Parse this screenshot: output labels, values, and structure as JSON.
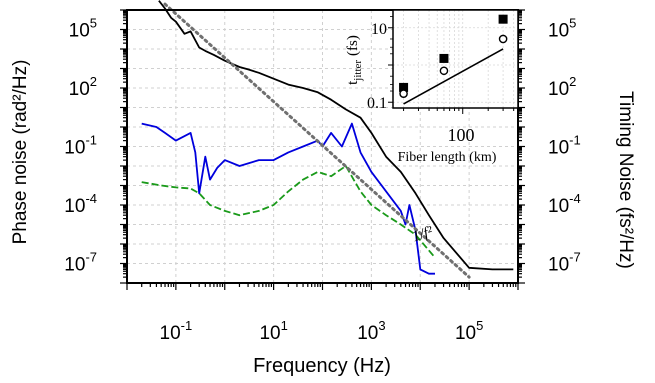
{
  "chart_data": {
    "type": "line",
    "xlabel": "Frequency (Hz)",
    "ylabel_left": "Phase noise (rad²/Hz)",
    "ylabel_right": "Timing Noise (fs²/Hz)",
    "x_scale": "log",
    "y_scale": "log",
    "xlim": [
      0.01,
      1000000
    ],
    "ylim": [
      1e-08,
      1000000
    ],
    "grid": true,
    "x_ticks": [
      {
        "value": 0.1,
        "base": "10",
        "exp": "-1"
      },
      {
        "value": 10,
        "base": "10",
        "exp": "1"
      },
      {
        "value": 1000,
        "base": "10",
        "exp": "3"
      },
      {
        "value": 100000,
        "base": "10",
        "exp": "5"
      }
    ],
    "y_ticks_left": [
      {
        "value": 100000,
        "base": "10",
        "exp": "5"
      },
      {
        "value": 100,
        "base": "10",
        "exp": "2"
      },
      {
        "value": 0.1,
        "base": "10",
        "exp": "-1"
      },
      {
        "value": 0.0001,
        "base": "10",
        "exp": "-4"
      },
      {
        "value": 1e-07,
        "base": "10",
        "exp": "-7"
      }
    ],
    "y_ticks_right": [
      {
        "value": 100000,
        "base": "10",
        "exp": "5"
      },
      {
        "value": 100,
        "base": "10",
        "exp": "2"
      },
      {
        "value": 0.1,
        "base": "10",
        "exp": "-1"
      },
      {
        "value": 0.0001,
        "base": "10",
        "exp": "-4"
      },
      {
        "value": 1e-07,
        "base": "10",
        "exp": "-7"
      }
    ],
    "annotation": "1/f²",
    "series": [
      {
        "color": "#000000",
        "style": "solid",
        "x": [
          0.045,
          0.06,
          0.08,
          0.1,
          0.15,
          0.2,
          0.3,
          0.4,
          0.6,
          1,
          2,
          3,
          5,
          10,
          20,
          40,
          80,
          150,
          300,
          600,
          1000,
          2000,
          4000,
          8000,
          15000,
          30000,
          100000,
          300000,
          800000
        ],
        "y": [
          3000000,
          1200000,
          400000,
          250000,
          60000,
          80000,
          12000,
          8000,
          5000,
          2500,
          1200,
          900,
          600,
          300,
          150,
          100,
          60,
          25,
          8,
          3,
          0.5,
          0.03,
          0.005,
          0.0004,
          3e-05,
          2e-06,
          6e-08,
          5e-08,
          5e-08
        ]
      },
      {
        "color": "#0000dd",
        "style": "solid",
        "x": [
          0.02,
          0.04,
          0.06,
          0.1,
          0.2,
          0.25,
          0.3,
          0.4,
          0.5,
          0.7,
          1,
          2,
          5,
          10,
          20,
          40,
          80,
          100,
          150,
          250,
          400,
          600,
          1000,
          2000,
          4000,
          5000,
          6000,
          8000,
          10000,
          15000,
          20000
        ],
        "y": [
          1.5,
          1.0,
          0.5,
          0.2,
          0.5,
          0.05,
          0.0004,
          0.03,
          0.002,
          0.008,
          0.02,
          0.01,
          0.02,
          0.02,
          0.05,
          0.1,
          0.2,
          0.1,
          0.5,
          0.1,
          1.5,
          0.05,
          0.005,
          0.0005,
          5e-05,
          1e-05,
          0.0001,
          5e-06,
          5e-08,
          3e-08,
          3e-08
        ]
      },
      {
        "color": "#1a9a1a",
        "style": "dashed",
        "x": [
          0.02,
          0.05,
          0.1,
          0.2,
          0.3,
          0.5,
          1,
          2,
          5,
          10,
          20,
          40,
          80,
          150,
          300,
          600,
          1000,
          2000,
          4000,
          8000,
          20000
        ],
        "y": [
          0.0015,
          0.001,
          0.0008,
          0.0007,
          0.0004,
          0.0001,
          5e-05,
          3e-05,
          5e-05,
          0.0001,
          0.0005,
          0.002,
          0.005,
          0.003,
          0.01,
          0.0005,
          0.0001,
          3e-05,
          1e-05,
          3e-06,
          2e-07
        ]
      },
      {
        "color": "#707070",
        "style": "dotted",
        "x": [
          0.06,
          100000
        ],
        "y": [
          2000000,
          2e-08
        ]
      }
    ],
    "inset": {
      "type": "scatter",
      "xlabel": "Fiber length (km)",
      "ylabel_main": "t",
      "ylabel_sub": "jitter",
      "ylabel_unit": "(fs)",
      "x_scale": "log",
      "y_scale": "log",
      "xlim": [
        15,
        450
      ],
      "ylim": [
        0.07,
        30
      ],
      "x_tick_label": "100",
      "x_tick_value": 100,
      "y_ticks": [
        {
          "value": 10,
          "label": "10"
        },
        {
          "value": 0.1,
          "label": "0.1"
        }
      ],
      "series": [
        {
          "marker": "filled-square",
          "x": [
            20,
            60,
            300
          ],
          "y": [
            0.25,
            1.5,
            17
          ]
        },
        {
          "marker": "open-circle",
          "x": [
            20,
            60,
            300
          ],
          "y": [
            0.17,
            0.7,
            5
          ]
        }
      ],
      "fit_line": {
        "x": [
          20,
          300
        ],
        "y": [
          0.09,
          2.7
        ]
      }
    }
  }
}
